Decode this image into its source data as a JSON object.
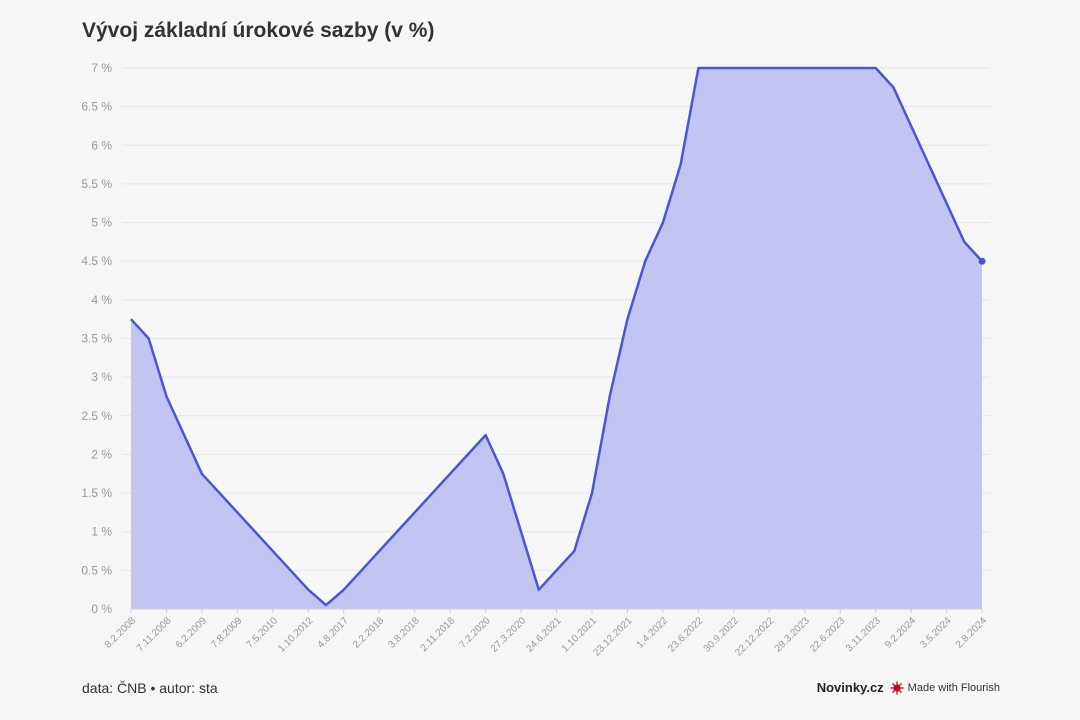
{
  "title": "Vývoj základní úrokové sazby (v %)",
  "footer": {
    "source": "data: ČNB • autor: sta",
    "brand": "Novinky.cz",
    "flourish": "Made with Flourish"
  },
  "colors": {
    "line": "#4a55d8",
    "area": "#c2c5f2",
    "grid": "#e6e6e6",
    "axis_text": "#999999"
  },
  "chart_data": {
    "type": "area",
    "title": "Vývoj základní úrokové sazby (v %)",
    "ylim": [
      0,
      7
    ],
    "y_ticks": [
      {
        "value": 0,
        "label": "0 %"
      },
      {
        "value": 0.5,
        "label": "0.5 %"
      },
      {
        "value": 1,
        "label": "1 %"
      },
      {
        "value": 1.5,
        "label": "1.5 %"
      },
      {
        "value": 2,
        "label": "2 %"
      },
      {
        "value": 2.5,
        "label": "2.5 %"
      },
      {
        "value": 3,
        "label": "3 %"
      },
      {
        "value": 3.5,
        "label": "3.5 %"
      },
      {
        "value": 4,
        "label": "4 %"
      },
      {
        "value": 4.5,
        "label": "4.5 %"
      },
      {
        "value": 5,
        "label": "5 %"
      },
      {
        "value": 5.5,
        "label": "5.5 %"
      },
      {
        "value": 6,
        "label": "6 %"
      },
      {
        "value": 6.5,
        "label": "6.5 %"
      },
      {
        "value": 7,
        "label": "7 %"
      }
    ],
    "categories": [
      "8.2.2008",
      "7.11.2008",
      "6.2.2009",
      "7.8.2009",
      "7.5.2010",
      "1.10.2012",
      "4.8.2017",
      "2.2.2018",
      "3.8.2018",
      "2.11.2018",
      "7.2.2020",
      "27.3.2020",
      "24.6.2021",
      "1.10.2021",
      "23.12.2021",
      "1.4.2022",
      "23.6.2022",
      "30.9.2022",
      "22.12.2022",
      "29.3.2023",
      "22.6.2023",
      "3.11.2023",
      "9.2.2024",
      "3.5.2024",
      "2.8.2024"
    ],
    "points": [
      {
        "i": 0,
        "y": 3.75
      },
      {
        "i": 0.5,
        "y": 3.5
      },
      {
        "i": 1,
        "y": 2.75
      },
      {
        "i": 2,
        "y": 1.75
      },
      {
        "i": 5,
        "y": 0.25
      },
      {
        "i": 5.5,
        "y": 0.05
      },
      {
        "i": 6,
        "y": 0.25
      },
      {
        "i": 10,
        "y": 2.25
      },
      {
        "i": 10.5,
        "y": 1.75
      },
      {
        "i": 11.5,
        "y": 0.25
      },
      {
        "i": 12.5,
        "y": 0.75
      },
      {
        "i": 13,
        "y": 1.5
      },
      {
        "i": 13.5,
        "y": 2.75
      },
      {
        "i": 14,
        "y": 3.75
      },
      {
        "i": 14.5,
        "y": 4.5
      },
      {
        "i": 15,
        "y": 5.0
      },
      {
        "i": 15.5,
        "y": 5.75
      },
      {
        "i": 16,
        "y": 7.0
      },
      {
        "i": 21,
        "y": 7.0
      },
      {
        "i": 21.5,
        "y": 6.75
      },
      {
        "i": 23.5,
        "y": 4.75
      },
      {
        "i": 24,
        "y": 4.5
      }
    ],
    "grid": true,
    "legend": "none"
  }
}
